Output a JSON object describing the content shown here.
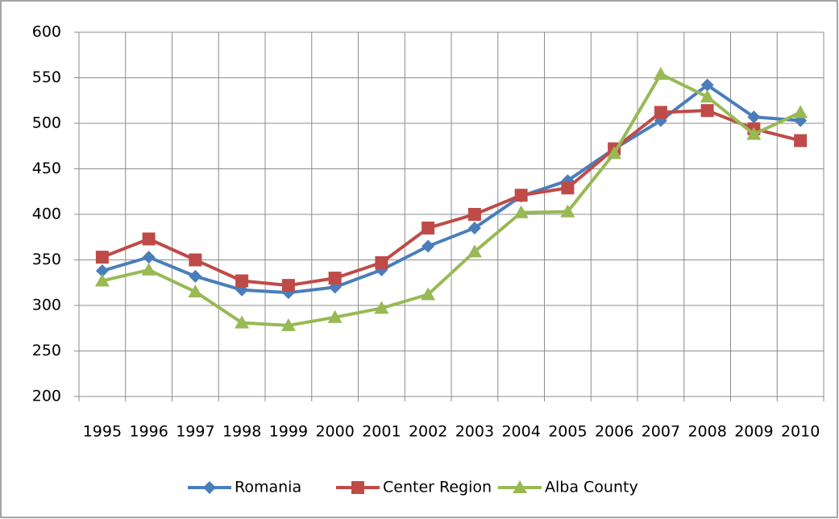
{
  "chart_data": {
    "type": "line",
    "categories": [
      "1995",
      "1996",
      "1997",
      "1998",
      "1999",
      "2000",
      "2001",
      "2002",
      "2003",
      "2004",
      "2005",
      "2006",
      "2007",
      "2008",
      "2009",
      "2010"
    ],
    "series": [
      {
        "name": "Romania",
        "color": "#4a7ebb",
        "marker": "diamond",
        "values": [
          338,
          353,
          332,
          317,
          314,
          320,
          339,
          365,
          385,
          420,
          437,
          472,
          503,
          542,
          507,
          503
        ]
      },
      {
        "name": "Center Region",
        "color": "#be4b48",
        "marker": "square",
        "values": [
          353,
          373,
          350,
          327,
          322,
          330,
          347,
          385,
          400,
          421,
          429,
          472,
          512,
          514,
          494,
          481
        ]
      },
      {
        "name": "Alba County",
        "color": "#98b954",
        "marker": "triangle",
        "values": [
          327,
          339,
          315,
          281,
          278,
          287,
          297,
          312,
          359,
          402,
          403,
          467,
          554,
          529,
          488,
          512
        ]
      }
    ],
    "ylim": [
      200,
      600
    ],
    "yticks": [
      200,
      250,
      300,
      350,
      400,
      450,
      500,
      550,
      600
    ],
    "grid": true,
    "legend": "bottom"
  }
}
